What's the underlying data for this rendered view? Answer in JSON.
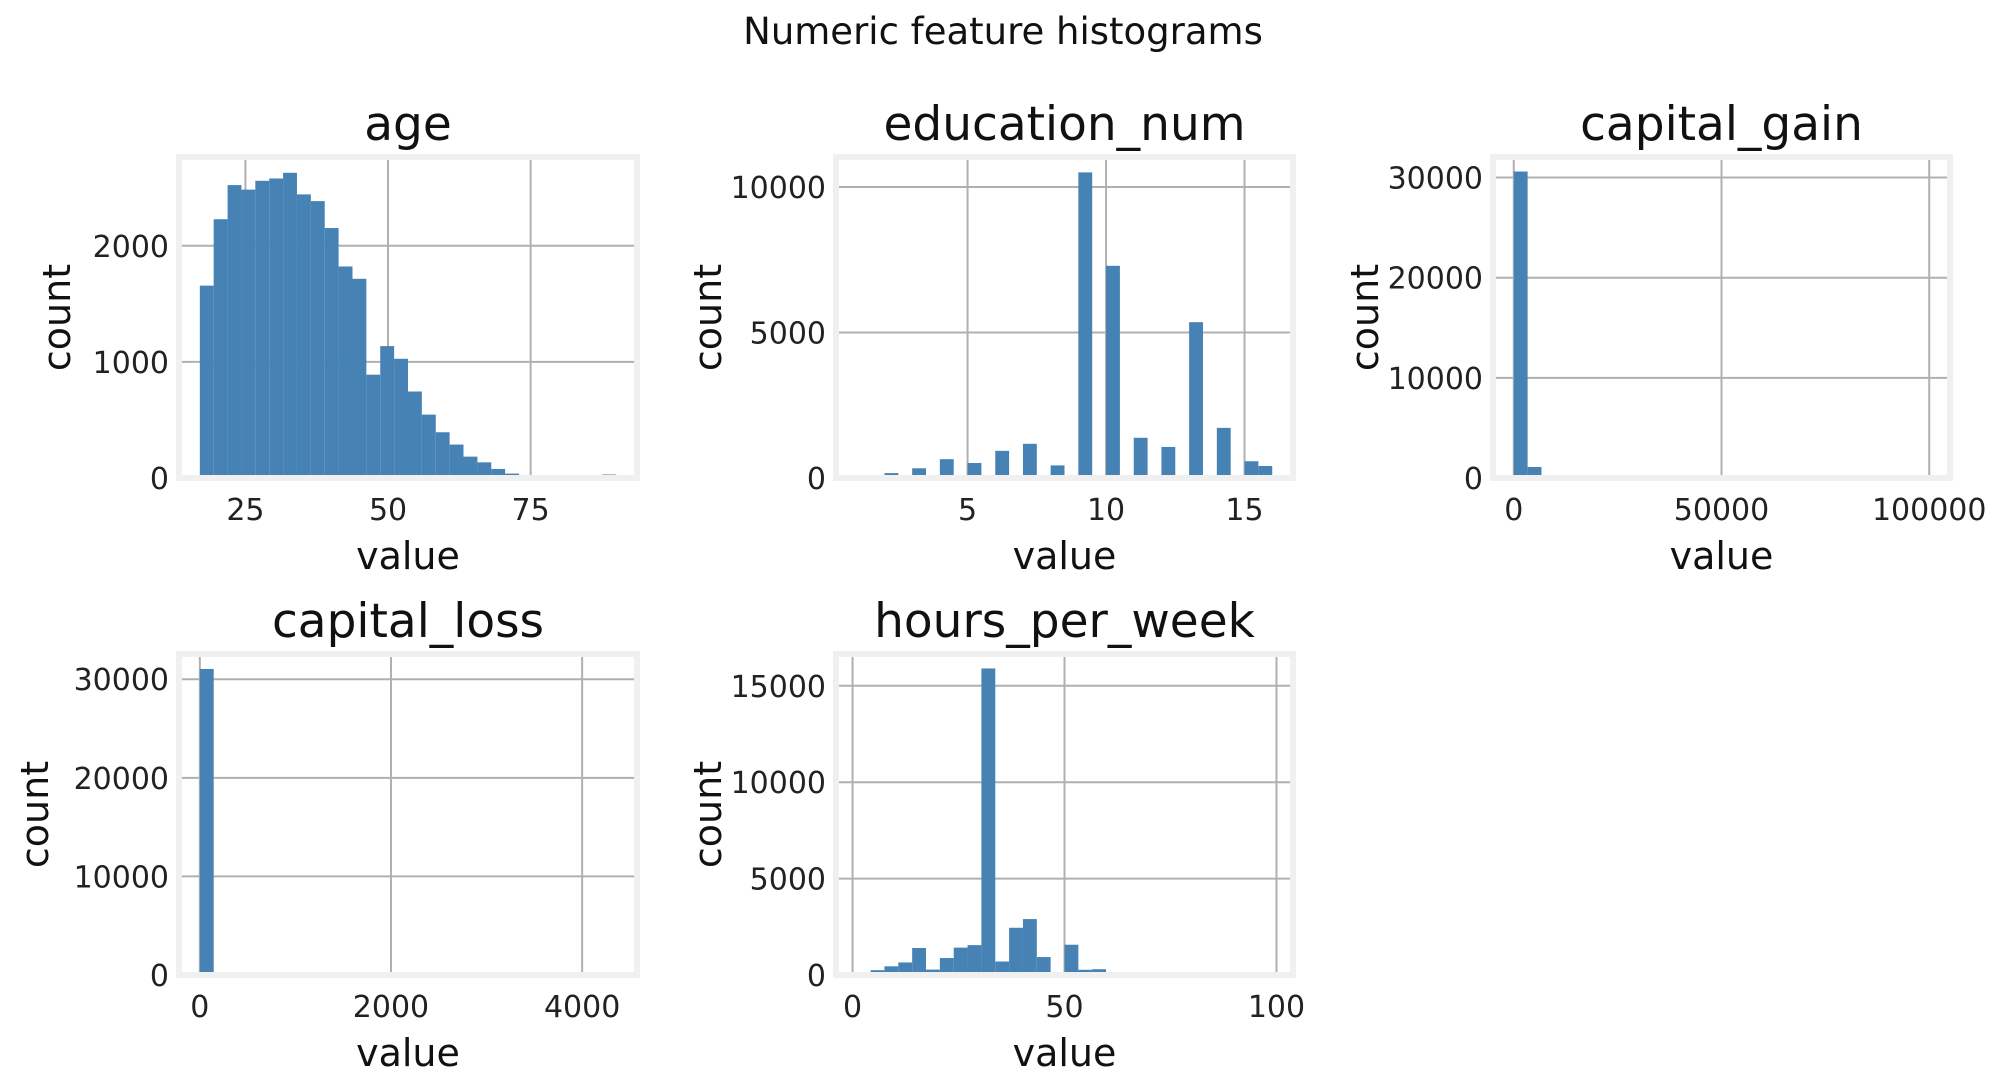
{
  "suptitle": "Numeric feature histograms",
  "chart_data": [
    {
      "type": "bar",
      "title": "age",
      "xlabel": "value",
      "ylabel": "count",
      "xlim": [
        13.35,
        93.65
      ],
      "ylim": [
        0,
        2765
      ],
      "xticks": [
        25,
        50,
        75
      ],
      "yticks": [
        0,
        1000,
        2000
      ],
      "grid": true,
      "bin_edges": [
        17,
        19.43,
        21.87,
        24.3,
        26.73,
        29.17,
        31.6,
        34.03,
        36.47,
        38.9,
        41.33,
        43.77,
        46.2,
        48.63,
        51.07,
        53.5,
        55.93,
        58.37,
        60.8,
        63.23,
        65.67,
        68.1,
        70.53,
        72.97,
        75.4,
        77.83,
        80.27,
        82.7,
        85.13,
        87.57,
        90
      ],
      "values": [
        1657,
        2229,
        2523,
        2484,
        2560,
        2580,
        2629,
        2443,
        2385,
        2153,
        1822,
        1716,
        890,
        1136,
        1027,
        745,
        546,
        394,
        288,
        184,
        135,
        78,
        38,
        26,
        11,
        8,
        3,
        2,
        1,
        30
      ]
    },
    {
      "type": "bar",
      "title": "education_num",
      "xlabel": "value",
      "ylabel": "count",
      "xlim": [
        0.25,
        16.75
      ],
      "ylim": [
        0,
        11030
      ],
      "xticks": [
        5,
        10,
        15
      ],
      "yticks": [
        0,
        5000,
        10000
      ],
      "grid": true,
      "bin_edges": [
        1,
        1.5,
        2,
        2.5,
        3,
        3.5,
        4,
        4.5,
        5,
        5.5,
        6,
        6.5,
        7,
        7.5,
        8,
        8.5,
        9,
        9.5,
        10,
        10.5,
        11,
        11.5,
        12,
        12.5,
        13,
        13.5,
        14,
        14.5,
        15,
        15.5,
        16
      ],
      "values": [
        51,
        0,
        168,
        0,
        333,
        0,
        646,
        0,
        514,
        0,
        933,
        0,
        1175,
        0,
        433,
        0,
        10501,
        0,
        7291,
        0,
        1382,
        0,
        1067,
        0,
        5355,
        0,
        1723,
        0,
        576,
        413
      ]
    },
    {
      "type": "bar",
      "title": "capital_gain",
      "xlabel": "value",
      "ylabel": "count",
      "xlim": [
        -5000,
        105000
      ],
      "ylim": [
        0,
        32050
      ],
      "xticks": [
        0,
        50000,
        100000
      ],
      "yticks": [
        0,
        10000,
        20000,
        30000
      ],
      "grid": true,
      "bin_edges": [
        0,
        3333,
        6667,
        10000,
        13333,
        16667,
        20000,
        23333,
        26667,
        30000,
        33333,
        36667,
        40000,
        43333,
        46667,
        50000,
        53333,
        56667,
        60000,
        63333,
        66667,
        70000,
        73333,
        76667,
        80000,
        83333,
        86667,
        90000,
        93333,
        96667,
        100000
      ],
      "values": [
        30600,
        1100,
        0,
        0,
        280,
        0,
        0,
        0,
        0,
        0,
        0,
        0,
        0,
        0,
        0,
        0,
        0,
        0,
        0,
        0,
        0,
        0,
        0,
        0,
        0,
        0,
        0,
        0,
        0,
        159
      ]
    },
    {
      "type": "bar",
      "title": "capital_loss",
      "xlabel": "value",
      "ylabel": "count",
      "xlim": [
        -218,
        4574
      ],
      "ylim": [
        0,
        32560
      ],
      "xticks": [
        0,
        2000,
        4000
      ],
      "yticks": [
        0,
        10000,
        20000,
        30000
      ],
      "grid": true,
      "bin_edges": [
        0,
        145.2,
        290.4,
        435.6,
        580.8,
        726,
        871.2,
        1016.4,
        1161.6,
        1306.8,
        1452,
        1597.2,
        1742.4,
        1887.6,
        2032.8,
        2178,
        2323.2,
        2468.4,
        2613.6,
        2758.8,
        2904,
        3049.2,
        3194.4,
        3339.6,
        3484.8,
        3630,
        3775.2,
        3920.4,
        4065.6,
        4210.8,
        4356
      ],
      "values": [
        31042,
        0,
        0,
        0,
        0,
        0,
        0,
        0,
        0,
        0,
        0,
        0,
        0,
        0,
        0,
        0,
        0,
        0,
        0,
        0,
        0,
        0,
        0,
        0,
        0,
        0,
        0,
        0,
        0,
        0
      ]
    },
    {
      "type": "bar",
      "title": "hours_per_week",
      "xlabel": "value",
      "ylabel": "count",
      "xlim": [
        -3.9,
        103.9
      ],
      "ylim": [
        0,
        16650
      ],
      "xticks": [
        0,
        50,
        100
      ],
      "yticks": [
        0,
        5000,
        10000,
        15000
      ],
      "grid": true,
      "bin_edges": [
        1,
        4.27,
        7.53,
        10.8,
        14.07,
        17.33,
        20.6,
        23.87,
        27.13,
        30.4,
        33.67,
        36.93,
        40.2,
        43.47,
        46.73,
        50,
        53.27,
        56.53,
        59.8,
        63.07,
        66.33,
        69.6,
        72.87,
        76.13,
        79.4,
        82.67,
        85.93,
        89.2,
        92.47,
        95.73,
        99
      ],
      "values": [
        60,
        250,
        450,
        650,
        1400,
        280,
        880,
        1420,
        1550,
        15900,
        700,
        2450,
        2900,
        930,
        50,
        1570,
        270,
        300,
        60,
        50,
        40,
        30,
        20,
        20,
        20,
        10,
        10,
        10,
        10,
        80
      ]
    }
  ]
}
